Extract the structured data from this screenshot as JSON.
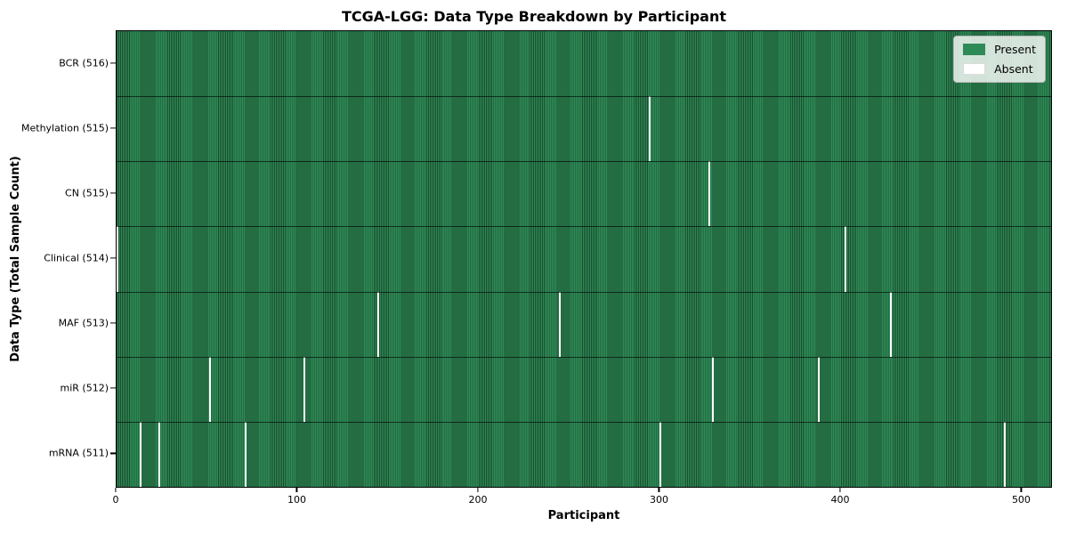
{
  "chart_data": {
    "type": "heatmap",
    "title": "TCGA-LGG: Data Type Breakdown by Participant",
    "xlabel": "Participant",
    "ylabel": "Data Type (Total Sample Count)",
    "x_ticks": [
      0,
      100,
      200,
      300,
      400,
      500
    ],
    "xlim": [
      0,
      516
    ],
    "n_participants": 516,
    "categories": [
      "BCR (516)",
      "Methylation (515)",
      "CN (515)",
      "Clinical (514)",
      "MAF (513)",
      "miR (512)",
      "mRNA (511)"
    ],
    "rows": [
      {
        "label": "BCR (516)",
        "data_type": "BCR",
        "present_count": 516,
        "absent_participants": []
      },
      {
        "label": "Methylation (515)",
        "data_type": "Methylation",
        "present_count": 515,
        "absent_participants": [
          294
        ]
      },
      {
        "label": "CN (515)",
        "data_type": "CN",
        "present_count": 515,
        "absent_participants": [
          327
        ]
      },
      {
        "label": "Clinical (514)",
        "data_type": "Clinical",
        "present_count": 514,
        "absent_participants": [
          0,
          402
        ]
      },
      {
        "label": "MAF (513)",
        "data_type": "MAF",
        "present_count": 513,
        "absent_participants": [
          144,
          244,
          427
        ]
      },
      {
        "label": "miR (512)",
        "data_type": "miR",
        "present_count": 512,
        "absent_participants": [
          51,
          103,
          329,
          387
        ]
      },
      {
        "label": "mRNA (511)",
        "data_type": "mRNA",
        "present_count": 511,
        "absent_participants": [
          13,
          23,
          71,
          300,
          490
        ]
      }
    ],
    "legend": [
      {
        "label": "Present",
        "color": "#2e8b57"
      },
      {
        "label": "Absent",
        "color": "#ffffff"
      }
    ],
    "legend_position": "upper right",
    "grid": false,
    "colors": {
      "present": "#2e8b57",
      "cell_edge": "#1b4d2e",
      "absent": "#ffffff",
      "row_separator": "rgba(0,0,0,0.62)"
    }
  }
}
